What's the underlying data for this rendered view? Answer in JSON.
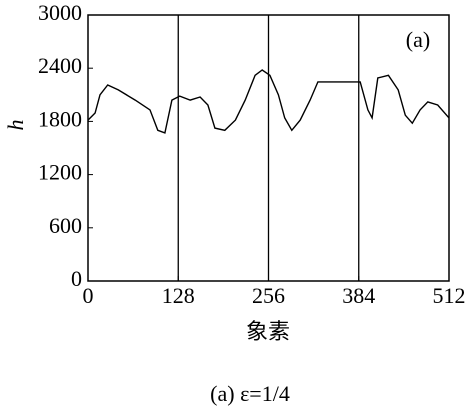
{
  "chart_data": {
    "type": "line",
    "x": [
      0,
      10,
      17,
      28,
      43,
      67,
      88,
      99,
      109,
      119,
      130,
      145,
      159,
      170,
      180,
      194,
      209,
      223,
      237,
      247,
      258,
      270,
      279,
      289,
      301,
      315,
      326,
      343,
      365,
      386,
      397,
      403,
      411,
      426,
      440,
      450,
      460,
      471,
      482,
      496,
      512
    ],
    "values": [
      1815,
      1895,
      2100,
      2210,
      2155,
      2040,
      1930,
      1700,
      1670,
      2040,
      2085,
      2040,
      2075,
      1985,
      1725,
      1700,
      1815,
      2040,
      2320,
      2380,
      2320,
      2100,
      1840,
      1700,
      1815,
      2040,
      2245,
      2245,
      2245,
      2245,
      1930,
      1840,
      2290,
      2320,
      2155,
      1870,
      1780,
      1930,
      2020,
      1985,
      1840
    ],
    "color": "#000000",
    "xlim": [
      0,
      512
    ],
    "xticks": [
      0,
      128,
      256,
      384,
      512
    ],
    "ylim": [
      0,
      3000
    ],
    "yticks": [
      0,
      600,
      1200,
      1800,
      2400,
      3000
    ],
    "vlines": [
      128,
      256,
      384
    ],
    "xlabel": "象素",
    "ylabel": "h",
    "annotation": "(a)",
    "caption": "(a) ε=1/4"
  }
}
